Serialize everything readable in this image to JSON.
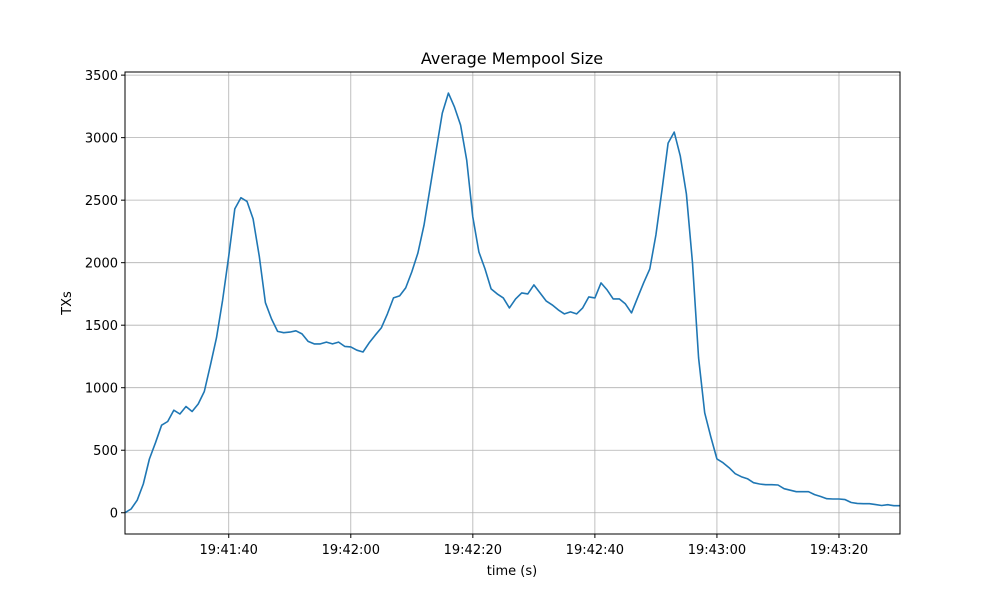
{
  "chart_data": {
    "type": "line",
    "title": "Average Mempool Size",
    "xlabel": "time (s)",
    "ylabel": "TXs",
    "xlim": [
      "19:41:23",
      "19:43:30"
    ],
    "ylim": [
      -170,
      3525
    ],
    "grid": true,
    "line_color": "#1f77b4",
    "x_ticks": [
      "19:41:40",
      "19:42:00",
      "19:42:20",
      "19:42:40",
      "19:43:00",
      "19:43:20"
    ],
    "y_ticks": [
      0,
      500,
      1000,
      1500,
      2000,
      2500,
      3000,
      3500
    ],
    "x": [
      "19:41:23",
      "19:41:24",
      "19:41:25",
      "19:41:26",
      "19:41:27",
      "19:41:28",
      "19:41:29",
      "19:41:30",
      "19:41:31",
      "19:41:32",
      "19:41:33",
      "19:41:34",
      "19:41:35",
      "19:41:36",
      "19:41:37",
      "19:41:38",
      "19:41:39",
      "19:41:40",
      "19:41:41",
      "19:41:42",
      "19:41:43",
      "19:41:44",
      "19:41:45",
      "19:41:46",
      "19:41:47",
      "19:41:48",
      "19:41:49",
      "19:41:50",
      "19:41:51",
      "19:41:52",
      "19:41:53",
      "19:41:54",
      "19:41:55",
      "19:41:56",
      "19:41:57",
      "19:41:58",
      "19:41:59",
      "19:42:00",
      "19:42:01",
      "19:42:02",
      "19:42:03",
      "19:42:04",
      "19:42:05",
      "19:42:06",
      "19:42:07",
      "19:42:08",
      "19:42:09",
      "19:42:10",
      "19:42:11",
      "19:42:12",
      "19:42:13",
      "19:42:14",
      "19:42:15",
      "19:42:16",
      "19:42:17",
      "19:42:18",
      "19:42:19",
      "19:42:20",
      "19:42:21",
      "19:42:22",
      "19:42:23",
      "19:42:24",
      "19:42:25",
      "19:42:26",
      "19:42:27",
      "19:42:28",
      "19:42:29",
      "19:42:30",
      "19:42:31",
      "19:42:32",
      "19:42:33",
      "19:42:34",
      "19:42:35",
      "19:42:36",
      "19:42:37",
      "19:42:38",
      "19:42:39",
      "19:42:40",
      "19:42:41",
      "19:42:42",
      "19:42:43",
      "19:42:44",
      "19:42:45",
      "19:42:46",
      "19:42:47",
      "19:42:48",
      "19:42:49",
      "19:42:50",
      "19:42:51",
      "19:42:52",
      "19:42:53",
      "19:42:54",
      "19:42:55",
      "19:42:56",
      "19:42:57",
      "19:42:58",
      "19:42:59",
      "19:43:00",
      "19:43:01",
      "19:43:02",
      "19:43:03",
      "19:43:04",
      "19:43:05",
      "19:43:06",
      "19:43:07",
      "19:43:08",
      "19:43:09",
      "19:43:10",
      "19:43:11",
      "19:43:12",
      "19:43:13",
      "19:43:14",
      "19:43:15",
      "19:43:16",
      "19:43:17",
      "19:43:18",
      "19:43:19",
      "19:43:20",
      "19:43:21",
      "19:43:22",
      "19:43:23",
      "19:43:24",
      "19:43:25",
      "19:43:26",
      "19:43:27",
      "19:43:28",
      "19:43:29",
      "19:43:30"
    ],
    "y": [
      0,
      30,
      100,
      230,
      430,
      560,
      700,
      730,
      820,
      790,
      850,
      810,
      870,
      970,
      1180,
      1400,
      1700,
      2050,
      2430,
      2520,
      2490,
      2350,
      2050,
      1680,
      1550,
      1450,
      1440,
      1445,
      1455,
      1430,
      1370,
      1350,
      1350,
      1365,
      1350,
      1365,
      1330,
      1326,
      1300,
      1286,
      1358,
      1420,
      1478,
      1590,
      1718,
      1734,
      1798,
      1926,
      2077,
      2300,
      2600,
      2900,
      3196,
      3356,
      3244,
      3100,
      2820,
      2365,
      2085,
      1950,
      1790,
      1750,
      1718,
      1638,
      1710,
      1758,
      1750,
      1822,
      1758,
      1694,
      1662,
      1622,
      1590,
      1606,
      1590,
      1638,
      1726,
      1718,
      1838,
      1782,
      1710,
      1710,
      1670,
      1598,
      1720,
      1840,
      1950,
      2221,
      2581,
      2956,
      3044,
      2852,
      2549,
      1998,
      1238,
      799,
      607,
      431,
      400,
      360,
      312,
      288,
      272,
      240,
      230,
      224,
      224,
      222,
      192,
      180,
      168,
      168,
      168,
      145,
      130,
      112,
      110,
      110,
      105,
      82,
      75,
      72,
      72,
      65,
      58,
      64,
      56,
      56
    ]
  }
}
